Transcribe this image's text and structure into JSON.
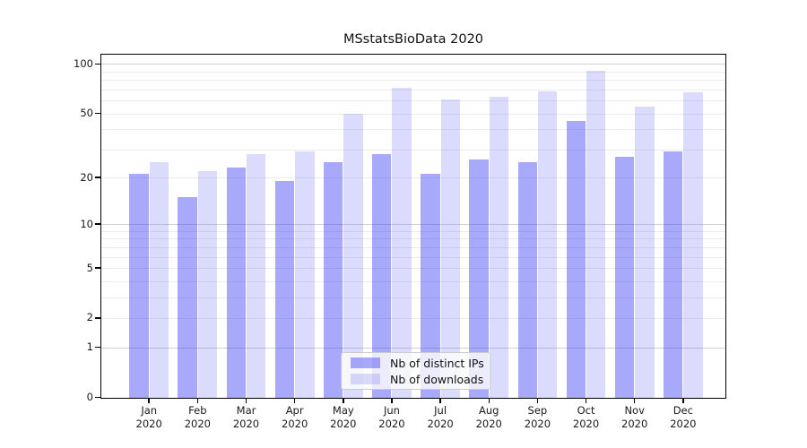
{
  "title": "MSstatsBioData 2020",
  "chart_data": {
    "type": "bar",
    "title": "MSstatsBioData 2020",
    "categories": [
      "Jan",
      "Feb",
      "Mar",
      "Apr",
      "May",
      "Jun",
      "Jul",
      "Aug",
      "Sep",
      "Oct",
      "Nov",
      "Dec"
    ],
    "year_label": "2020",
    "series": [
      {
        "name": "Nb of distinct IPs",
        "color": "#3C3CF570",
        "values": [
          21,
          15,
          23,
          19,
          25,
          28,
          21,
          26,
          25,
          45,
          27,
          29
        ]
      },
      {
        "name": "Nb of downloads",
        "color": "#6464F53C",
        "values": [
          25,
          22,
          28,
          29,
          50,
          72,
          61,
          63,
          68,
          91,
          55,
          67
        ]
      }
    ],
    "yaxis": {
      "scale": "log1p",
      "ticks": [
        100,
        50,
        20,
        10,
        5,
        2,
        1,
        0
      ],
      "major_gridlines": [
        1,
        10,
        100
      ],
      "minor_gridlines": [
        2,
        3,
        4,
        5,
        6,
        7,
        8,
        9,
        20,
        30,
        40,
        50,
        60,
        70,
        80,
        90
      ],
      "ylim": [
        0,
        115
      ]
    },
    "xlabel": "",
    "ylabel": "",
    "grid": true,
    "legend_position": "lower center"
  },
  "colors": {
    "bar_ips": "#3C3CF570",
    "bar_downloads": "#6464F53C",
    "grid_major": "#d0d0d0",
    "grid_minor": "#ebebeb",
    "spine": "#000000",
    "legend_border": "#cccccc"
  }
}
